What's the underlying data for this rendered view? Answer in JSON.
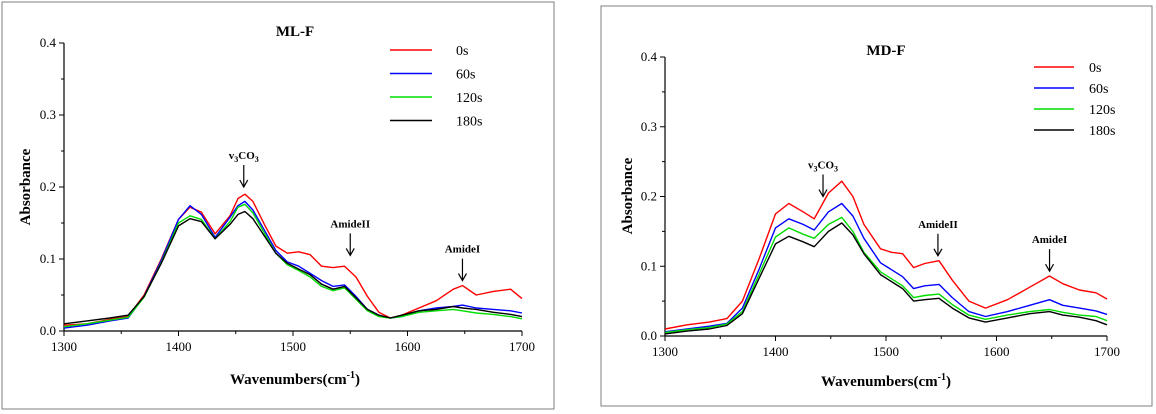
{
  "chart_data": [
    {
      "type": "line",
      "title": "ML-F",
      "xlabel": "Wavenumbers(cm-1)",
      "ylabel": "Absorbance",
      "xlim": [
        1300,
        1700
      ],
      "ylim": [
        0,
        0.4
      ],
      "xticks": [
        1300,
        1400,
        1500,
        1600,
        1700
      ],
      "yticks": [
        "0.0",
        "0.1",
        "0.2",
        "0.3",
        "0.4"
      ],
      "legend_position": "top-right",
      "annotations": [
        {
          "label": "v3CO3",
          "x": 1457,
          "y": 0.2
        },
        {
          "label": "AmideII",
          "x": 1550,
          "y": 0.105
        },
        {
          "label": "AmideI",
          "x": 1648,
          "y": 0.07
        }
      ],
      "x": [
        1300,
        1320,
        1340,
        1356,
        1370,
        1385,
        1400,
        1410,
        1420,
        1432,
        1445,
        1452,
        1458,
        1465,
        1475,
        1485,
        1495,
        1505,
        1515,
        1525,
        1535,
        1545,
        1555,
        1565,
        1575,
        1585,
        1595,
        1610,
        1625,
        1640,
        1648,
        1660,
        1675,
        1690,
        1700
      ],
      "series": [
        {
          "name": "0s",
          "color": "#ff0000",
          "values": [
            0.008,
            0.01,
            0.016,
            0.02,
            0.05,
            0.1,
            0.155,
            0.172,
            0.165,
            0.135,
            0.16,
            0.184,
            0.19,
            0.18,
            0.148,
            0.118,
            0.108,
            0.11,
            0.106,
            0.09,
            0.088,
            0.09,
            0.075,
            0.048,
            0.026,
            0.018,
            0.022,
            0.032,
            0.042,
            0.058,
            0.063,
            0.05,
            0.055,
            0.058,
            0.045
          ]
        },
        {
          "name": "60s",
          "color": "#0000ff",
          "values": [
            0.004,
            0.008,
            0.014,
            0.018,
            0.048,
            0.098,
            0.155,
            0.174,
            0.162,
            0.13,
            0.158,
            0.174,
            0.18,
            0.168,
            0.14,
            0.112,
            0.096,
            0.09,
            0.08,
            0.07,
            0.062,
            0.064,
            0.048,
            0.03,
            0.022,
            0.018,
            0.02,
            0.028,
            0.032,
            0.034,
            0.036,
            0.032,
            0.03,
            0.028,
            0.025
          ]
        },
        {
          "name": "120s",
          "color": "#00dd00",
          "values": [
            0.006,
            0.01,
            0.015,
            0.019,
            0.047,
            0.095,
            0.15,
            0.16,
            0.155,
            0.128,
            0.152,
            0.172,
            0.176,
            0.164,
            0.136,
            0.108,
            0.092,
            0.084,
            0.075,
            0.062,
            0.056,
            0.06,
            0.044,
            0.028,
            0.02,
            0.018,
            0.02,
            0.026,
            0.028,
            0.03,
            0.028,
            0.025,
            0.023,
            0.02,
            0.017
          ]
        },
        {
          "name": "180s",
          "color": "#000000",
          "values": [
            0.01,
            0.014,
            0.018,
            0.022,
            0.048,
            0.094,
            0.146,
            0.156,
            0.152,
            0.128,
            0.148,
            0.162,
            0.166,
            0.156,
            0.132,
            0.108,
            0.094,
            0.086,
            0.078,
            0.065,
            0.058,
            0.062,
            0.046,
            0.03,
            0.022,
            0.018,
            0.022,
            0.028,
            0.03,
            0.034,
            0.032,
            0.03,
            0.026,
            0.023,
            0.02
          ]
        }
      ]
    },
    {
      "type": "line",
      "title": "MD-F",
      "xlabel": "Wavenumbers(cm-1)",
      "ylabel": "Absorbance",
      "xlim": [
        1300,
        1700
      ],
      "ylim": [
        0,
        0.4
      ],
      "xticks": [
        1300,
        1400,
        1500,
        1600,
        1700
      ],
      "yticks": [
        "0.0",
        "0.1",
        "0.2",
        "0.3",
        "0.4"
      ],
      "legend_position": "top-right",
      "annotations": [
        {
          "label": "v3CO3",
          "x": 1443,
          "y": 0.2
        },
        {
          "label": "AmideII",
          "x": 1547,
          "y": 0.115
        },
        {
          "label": "AmideI",
          "x": 1648,
          "y": 0.093
        }
      ],
      "x": [
        1300,
        1320,
        1340,
        1356,
        1370,
        1385,
        1400,
        1412,
        1425,
        1435,
        1448,
        1460,
        1470,
        1480,
        1495,
        1505,
        1515,
        1525,
        1535,
        1548,
        1560,
        1575,
        1590,
        1610,
        1630,
        1648,
        1660,
        1675,
        1690,
        1700
      ],
      "series": [
        {
          "name": "0s",
          "color": "#ff0000",
          "values": [
            0.01,
            0.016,
            0.02,
            0.025,
            0.05,
            0.11,
            0.175,
            0.19,
            0.178,
            0.168,
            0.205,
            0.222,
            0.2,
            0.16,
            0.125,
            0.12,
            0.118,
            0.098,
            0.104,
            0.108,
            0.08,
            0.05,
            0.04,
            0.052,
            0.07,
            0.086,
            0.075,
            0.066,
            0.062,
            0.053
          ]
        },
        {
          "name": "60s",
          "color": "#0000ff",
          "values": [
            0.006,
            0.01,
            0.014,
            0.018,
            0.04,
            0.095,
            0.155,
            0.168,
            0.16,
            0.152,
            0.178,
            0.19,
            0.172,
            0.14,
            0.105,
            0.095,
            0.085,
            0.068,
            0.072,
            0.074,
            0.055,
            0.035,
            0.028,
            0.035,
            0.044,
            0.052,
            0.044,
            0.04,
            0.036,
            0.031
          ]
        },
        {
          "name": "120s",
          "color": "#00dd00",
          "values": [
            0.005,
            0.009,
            0.012,
            0.017,
            0.035,
            0.088,
            0.142,
            0.155,
            0.146,
            0.14,
            0.16,
            0.17,
            0.15,
            0.12,
            0.092,
            0.082,
            0.072,
            0.055,
            0.058,
            0.06,
            0.045,
            0.03,
            0.024,
            0.03,
            0.035,
            0.038,
            0.034,
            0.03,
            0.028,
            0.022
          ]
        },
        {
          "name": "180s",
          "color": "#000000",
          "values": [
            0.003,
            0.007,
            0.01,
            0.015,
            0.032,
            0.082,
            0.132,
            0.143,
            0.135,
            0.128,
            0.15,
            0.162,
            0.145,
            0.118,
            0.088,
            0.078,
            0.068,
            0.05,
            0.052,
            0.054,
            0.04,
            0.026,
            0.02,
            0.026,
            0.032,
            0.035,
            0.03,
            0.027,
            0.022,
            0.016
          ]
        }
      ]
    }
  ]
}
